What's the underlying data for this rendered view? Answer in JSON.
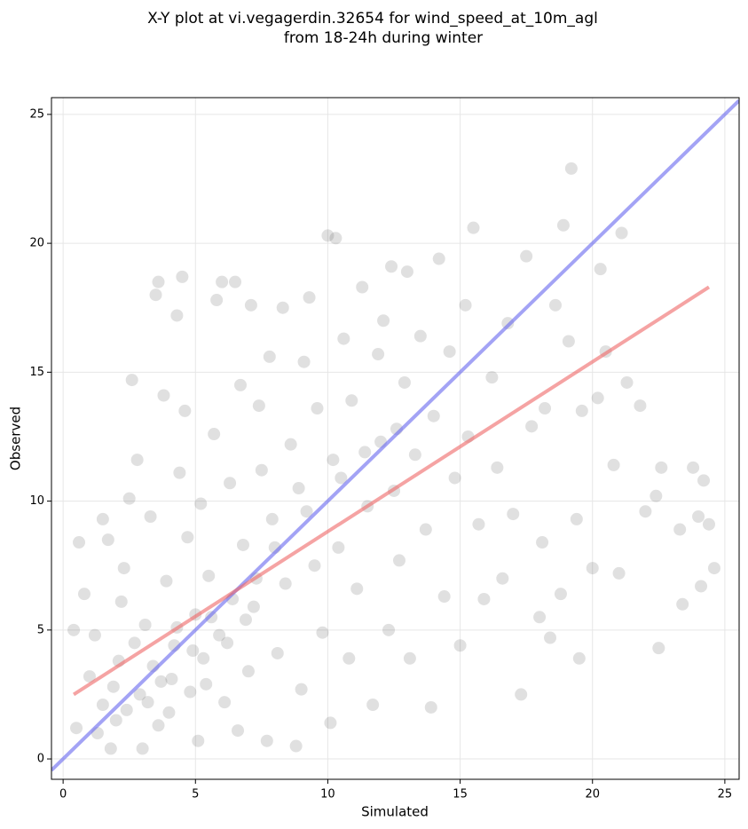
{
  "chart_data": {
    "type": "scatter",
    "title": [
      "X-Y plot at vi.vegagerdin.32654 for wind_speed_at_10m_agl",
      "from 18-24h during winter"
    ],
    "x_label": "Simulated",
    "y_label": "Observed",
    "xlim": [
      -0.44,
      25.54
    ],
    "ylim": [
      -0.79,
      25.65
    ],
    "xticks": [
      0,
      5,
      10,
      15,
      20,
      25
    ],
    "yticks": [
      0,
      5,
      10,
      15,
      20,
      25
    ],
    "grid": true,
    "series": [
      {
        "color": "#555555",
        "x": [
          0.4,
          0.6,
          0.8,
          0.5,
          1.0,
          1.2,
          1.5,
          1.5,
          1.7,
          1.8,
          2.0,
          2.1,
          2.2,
          2.3,
          2.5,
          2.6,
          2.8,
          2.9,
          3.0,
          3.1,
          3.3,
          3.5,
          3.6,
          3.7,
          3.8,
          3.9,
          4.0,
          4.2,
          4.3,
          4.4,
          4.5,
          4.6,
          4.7,
          4.8,
          5.0,
          5.1,
          5.2,
          5.3,
          5.5,
          5.7,
          5.8,
          5.9,
          6.0,
          6.1,
          6.3,
          6.4,
          6.5,
          6.6,
          6.7,
          6.8,
          7.0,
          7.1,
          7.2,
          7.4,
          7.5,
          7.7,
          7.8,
          7.9,
          8.1,
          8.3,
          8.4,
          8.6,
          8.8,
          8.9,
          9.0,
          9.1,
          9.3,
          9.5,
          9.6,
          9.8,
          10.0,
          10.1,
          10.2,
          10.3,
          10.4,
          10.6,
          10.8,
          10.9,
          11.1,
          11.3,
          11.5,
          11.7,
          11.9,
          12.0,
          12.1,
          12.3,
          12.4,
          12.5,
          12.7,
          12.9,
          13.0,
          13.1,
          13.3,
          13.5,
          13.7,
          13.9,
          14.0,
          14.2,
          14.4,
          14.6,
          14.8,
          15.0,
          15.2,
          15.3,
          15.5,
          15.7,
          15.9,
          16.2,
          16.4,
          16.6,
          16.8,
          17.0,
          17.3,
          17.5,
          17.7,
          18.0,
          18.1,
          18.2,
          18.4,
          18.6,
          18.8,
          18.9,
          19.1,
          19.2,
          19.4,
          19.5,
          19.6,
          20.0,
          20.2,
          20.3,
          20.5,
          20.8,
          21.0,
          21.1,
          21.3,
          21.8,
          22.0,
          22.4,
          22.5,
          22.6,
          23.3,
          23.4,
          23.8,
          24.0,
          24.1,
          24.2,
          24.4,
          24.6,
          1.3,
          1.9,
          2.4,
          2.7,
          3.2,
          3.4,
          3.6,
          4.1,
          4.3,
          4.9,
          5.4,
          5.6,
          6.2,
          6.9,
          7.3,
          8.0,
          9.2,
          10.5,
          11.4,
          12.6
        ],
        "values": [
          5.0,
          8.4,
          6.4,
          1.2,
          3.2,
          4.8,
          2.1,
          9.3,
          8.5,
          0.4,
          1.5,
          3.8,
          6.1,
          7.4,
          10.1,
          14.7,
          11.6,
          2.5,
          0.4,
          5.2,
          9.4,
          18.0,
          18.5,
          3.0,
          14.1,
          6.9,
          1.8,
          4.4,
          17.2,
          11.1,
          18.7,
          13.5,
          8.6,
          2.6,
          5.6,
          0.7,
          9.9,
          3.9,
          7.1,
          12.6,
          17.8,
          4.8,
          18.5,
          2.2,
          10.7,
          6.2,
          18.5,
          1.1,
          14.5,
          8.3,
          3.4,
          17.6,
          5.9,
          13.7,
          11.2,
          0.7,
          15.6,
          9.3,
          4.1,
          17.5,
          6.8,
          12.2,
          0.5,
          10.5,
          2.7,
          15.4,
          17.9,
          7.5,
          13.6,
          4.9,
          20.3,
          1.4,
          11.6,
          20.2,
          8.2,
          16.3,
          3.9,
          13.9,
          6.6,
          18.3,
          9.8,
          2.1,
          15.7,
          12.3,
          17.0,
          5.0,
          19.1,
          10.4,
          7.7,
          14.6,
          18.9,
          3.9,
          11.8,
          16.4,
          8.9,
          2.0,
          13.3,
          19.4,
          6.3,
          15.8,
          10.9,
          4.4,
          17.6,
          12.5,
          20.6,
          9.1,
          6.2,
          14.8,
          11.3,
          7.0,
          16.9,
          9.5,
          2.5,
          19.5,
          12.9,
          5.5,
          8.4,
          13.6,
          4.7,
          17.6,
          6.4,
          20.7,
          16.2,
          22.9,
          9.3,
          3.9,
          13.5,
          7.4,
          14.0,
          19.0,
          15.8,
          11.4,
          7.2,
          20.4,
          14.6,
          13.7,
          9.6,
          10.2,
          4.3,
          11.3,
          8.9,
          6.0,
          11.3,
          9.4,
          6.7,
          10.8,
          9.1,
          7.4,
          1.0,
          2.8,
          1.9,
          4.5,
          2.2,
          3.6,
          1.3,
          3.1,
          5.1,
          4.2,
          2.9,
          5.5,
          4.5,
          5.4,
          7.0,
          8.2,
          9.6,
          10.9,
          11.9,
          12.8
        ]
      }
    ],
    "lines": [
      {
        "color": "#6666ee",
        "x": [
          -0.44,
          25.54
        ],
        "values": [
          -0.44,
          25.54
        ]
      },
      {
        "color": "#ee6666",
        "x": [
          0.4,
          24.4
        ],
        "values": [
          2.5,
          18.3
        ]
      }
    ]
  }
}
